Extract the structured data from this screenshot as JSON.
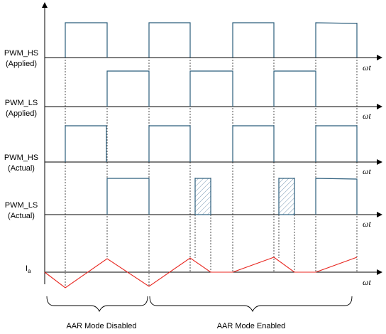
{
  "diagram": {
    "signals": [
      {
        "id": "pwm-hs-applied",
        "label_line1": "PWM_HS",
        "label_line2": "(Applied)"
      },
      {
        "id": "pwm-ls-applied",
        "label_line1": "PWM_LS",
        "label_line2": "(Applied)"
      },
      {
        "id": "pwm-hs-actual",
        "label_line1": "PWM_HS",
        "label_line2": "(Actual)"
      },
      {
        "id": "pwm-ls-actual",
        "label_line1": "PWM_LS",
        "label_line2": "(Actual)"
      },
      {
        "id": "current",
        "label_main": "I",
        "label_sub": "a"
      }
    ],
    "time_axis_label": "ωt",
    "regions": [
      {
        "id": "aar-disabled",
        "label": "AAR Mode Disabled"
      },
      {
        "id": "aar-enabled",
        "label": "AAR Mode Enabled"
      }
    ],
    "colors": {
      "pulse": "#2b5d7c",
      "current": "#e8261f",
      "hatch": "#7a9ab5",
      "axis": "#000000",
      "dashed": "#000000"
    }
  }
}
